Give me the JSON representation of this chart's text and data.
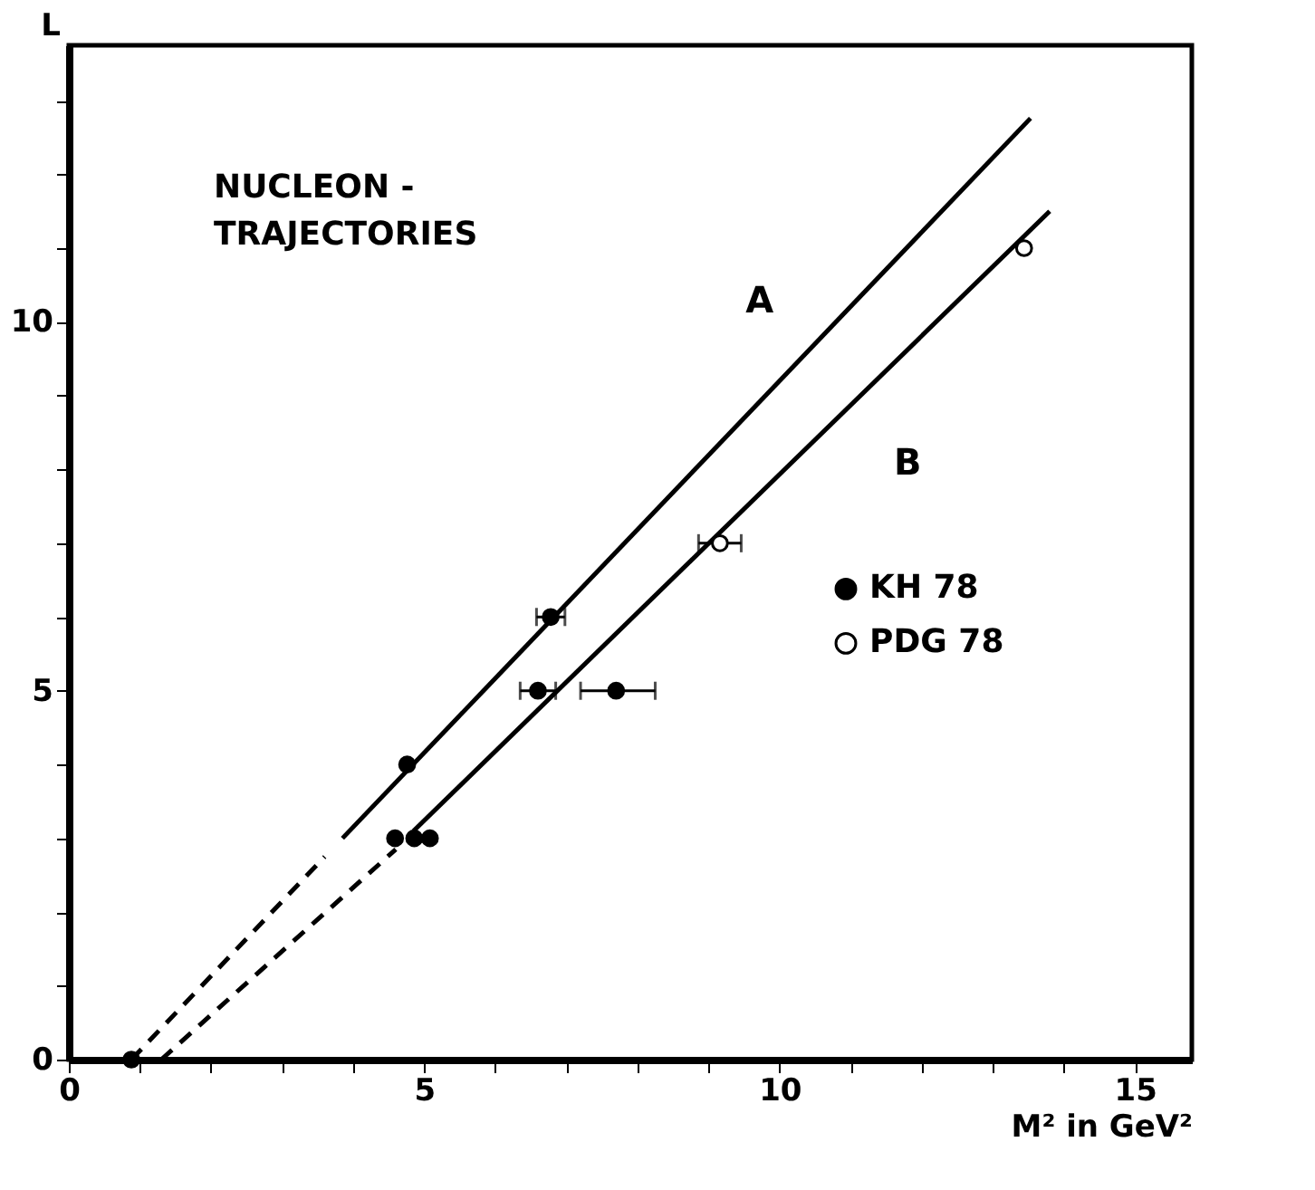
{
  "chart_data": {
    "type": "scatter",
    "title": "NUCLEON -\nTRAJECTORIES",
    "xlabel": "M² in GeV²",
    "ylabel": "L",
    "xlim": [
      0,
      15.8
    ],
    "ylim": [
      0,
      13.75
    ],
    "xticks": [
      0,
      {
        "value": 1,
        "label": null
      },
      {
        "value": 2,
        "label": null
      },
      {
        "value": 3,
        "label": null
      },
      {
        "value": 4,
        "label": null
      },
      5,
      {
        "value": 6,
        "label": null
      },
      {
        "value": 7,
        "label": null
      },
      {
        "value": 8,
        "label": null
      },
      {
        "value": 9,
        "label": null
      },
      10,
      {
        "value": 11,
        "label": null
      },
      {
        "value": 12,
        "label": null
      },
      {
        "value": 13,
        "label": null
      },
      {
        "value": 14,
        "label": null
      },
      15
    ],
    "yticks": [
      0,
      {
        "value": 1,
        "label": null
      },
      {
        "value": 2,
        "label": null
      },
      {
        "value": 3,
        "label": null
      },
      {
        "value": 4,
        "label": null
      },
      5,
      {
        "value": 6,
        "label": null
      },
      {
        "value": 7,
        "label": null
      },
      {
        "value": 8,
        "label": null
      },
      {
        "value": 9,
        "label": null
      },
      10,
      {
        "value": 11,
        "label": null
      },
      {
        "value": 12,
        "label": null
      },
      {
        "value": 13,
        "label": null
      }
    ],
    "grid": false,
    "legend": "right",
    "series": [
      {
        "type": "line",
        "color": "#000000",
        "line_style": "dashed",
        "x": [
          0.88,
          3.6
        ],
        "values": [
          0,
          2.75
        ]
      },
      {
        "type": "line",
        "name": "A",
        "color": "#000000",
        "line_style": "solid",
        "x": [
          3.85,
          13.53
        ],
        "values": [
          3.0,
          12.76
        ]
      },
      {
        "type": "line",
        "color": "#000000",
        "line_style": "dashed",
        "x": [
          1.3,
          4.6
        ],
        "values": [
          0,
          2.85
        ]
      },
      {
        "type": "line",
        "name": "B",
        "color": "#000000",
        "line_style": "solid",
        "x": [
          4.85,
          13.8
        ],
        "values": [
          3.1,
          11.5
        ]
      },
      {
        "name": "KH 78",
        "marker": "circle",
        "color": "#000000",
        "x": [
          0.88,
          4.59,
          4.86,
          5.08,
          4.76,
          6.6,
          7.7,
          6.78
        ],
        "values": [
          0,
          3,
          3,
          3,
          4,
          5,
          5,
          6
        ],
        "xerrors": [
          null,
          null,
          null,
          null,
          null,
          0.25,
          [
            7.2,
            8.25
          ],
          0.2
        ]
      },
      {
        "name": "PDG 78",
        "marker": "circle",
        "color": "#ffffff",
        "x": [
          9.16,
          13.44
        ],
        "values": [
          7,
          11
        ],
        "xerrors": [
          0.3,
          null
        ]
      }
    ]
  }
}
